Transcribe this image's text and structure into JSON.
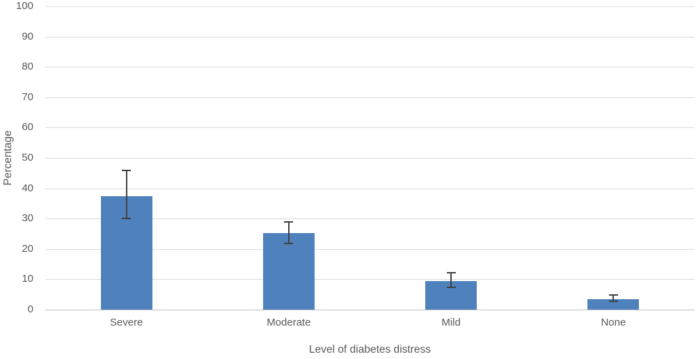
{
  "chart_data": {
    "type": "bar",
    "title": "",
    "xlabel": "Level of diabetes distress",
    "ylabel": "Percentage",
    "categories": [
      "Severe",
      "Moderate",
      "Mild",
      "None"
    ],
    "values": [
      37.5,
      25.2,
      9.4,
      3.5
    ],
    "error_bars": {
      "upper": [
        46.2,
        29.2,
        12.5,
        5.0
      ],
      "lower": [
        29.8,
        21.6,
        7.0,
        2.5
      ]
    },
    "ylim": [
      0,
      100
    ],
    "ytick_step": 10,
    "grid": true,
    "legend": "none",
    "bar_color": "#4f81bd",
    "error_color": "#404040",
    "gridline_color": "#d9d9d9",
    "axis_line_color": "#bfbfbf",
    "label_color": "#595959"
  }
}
